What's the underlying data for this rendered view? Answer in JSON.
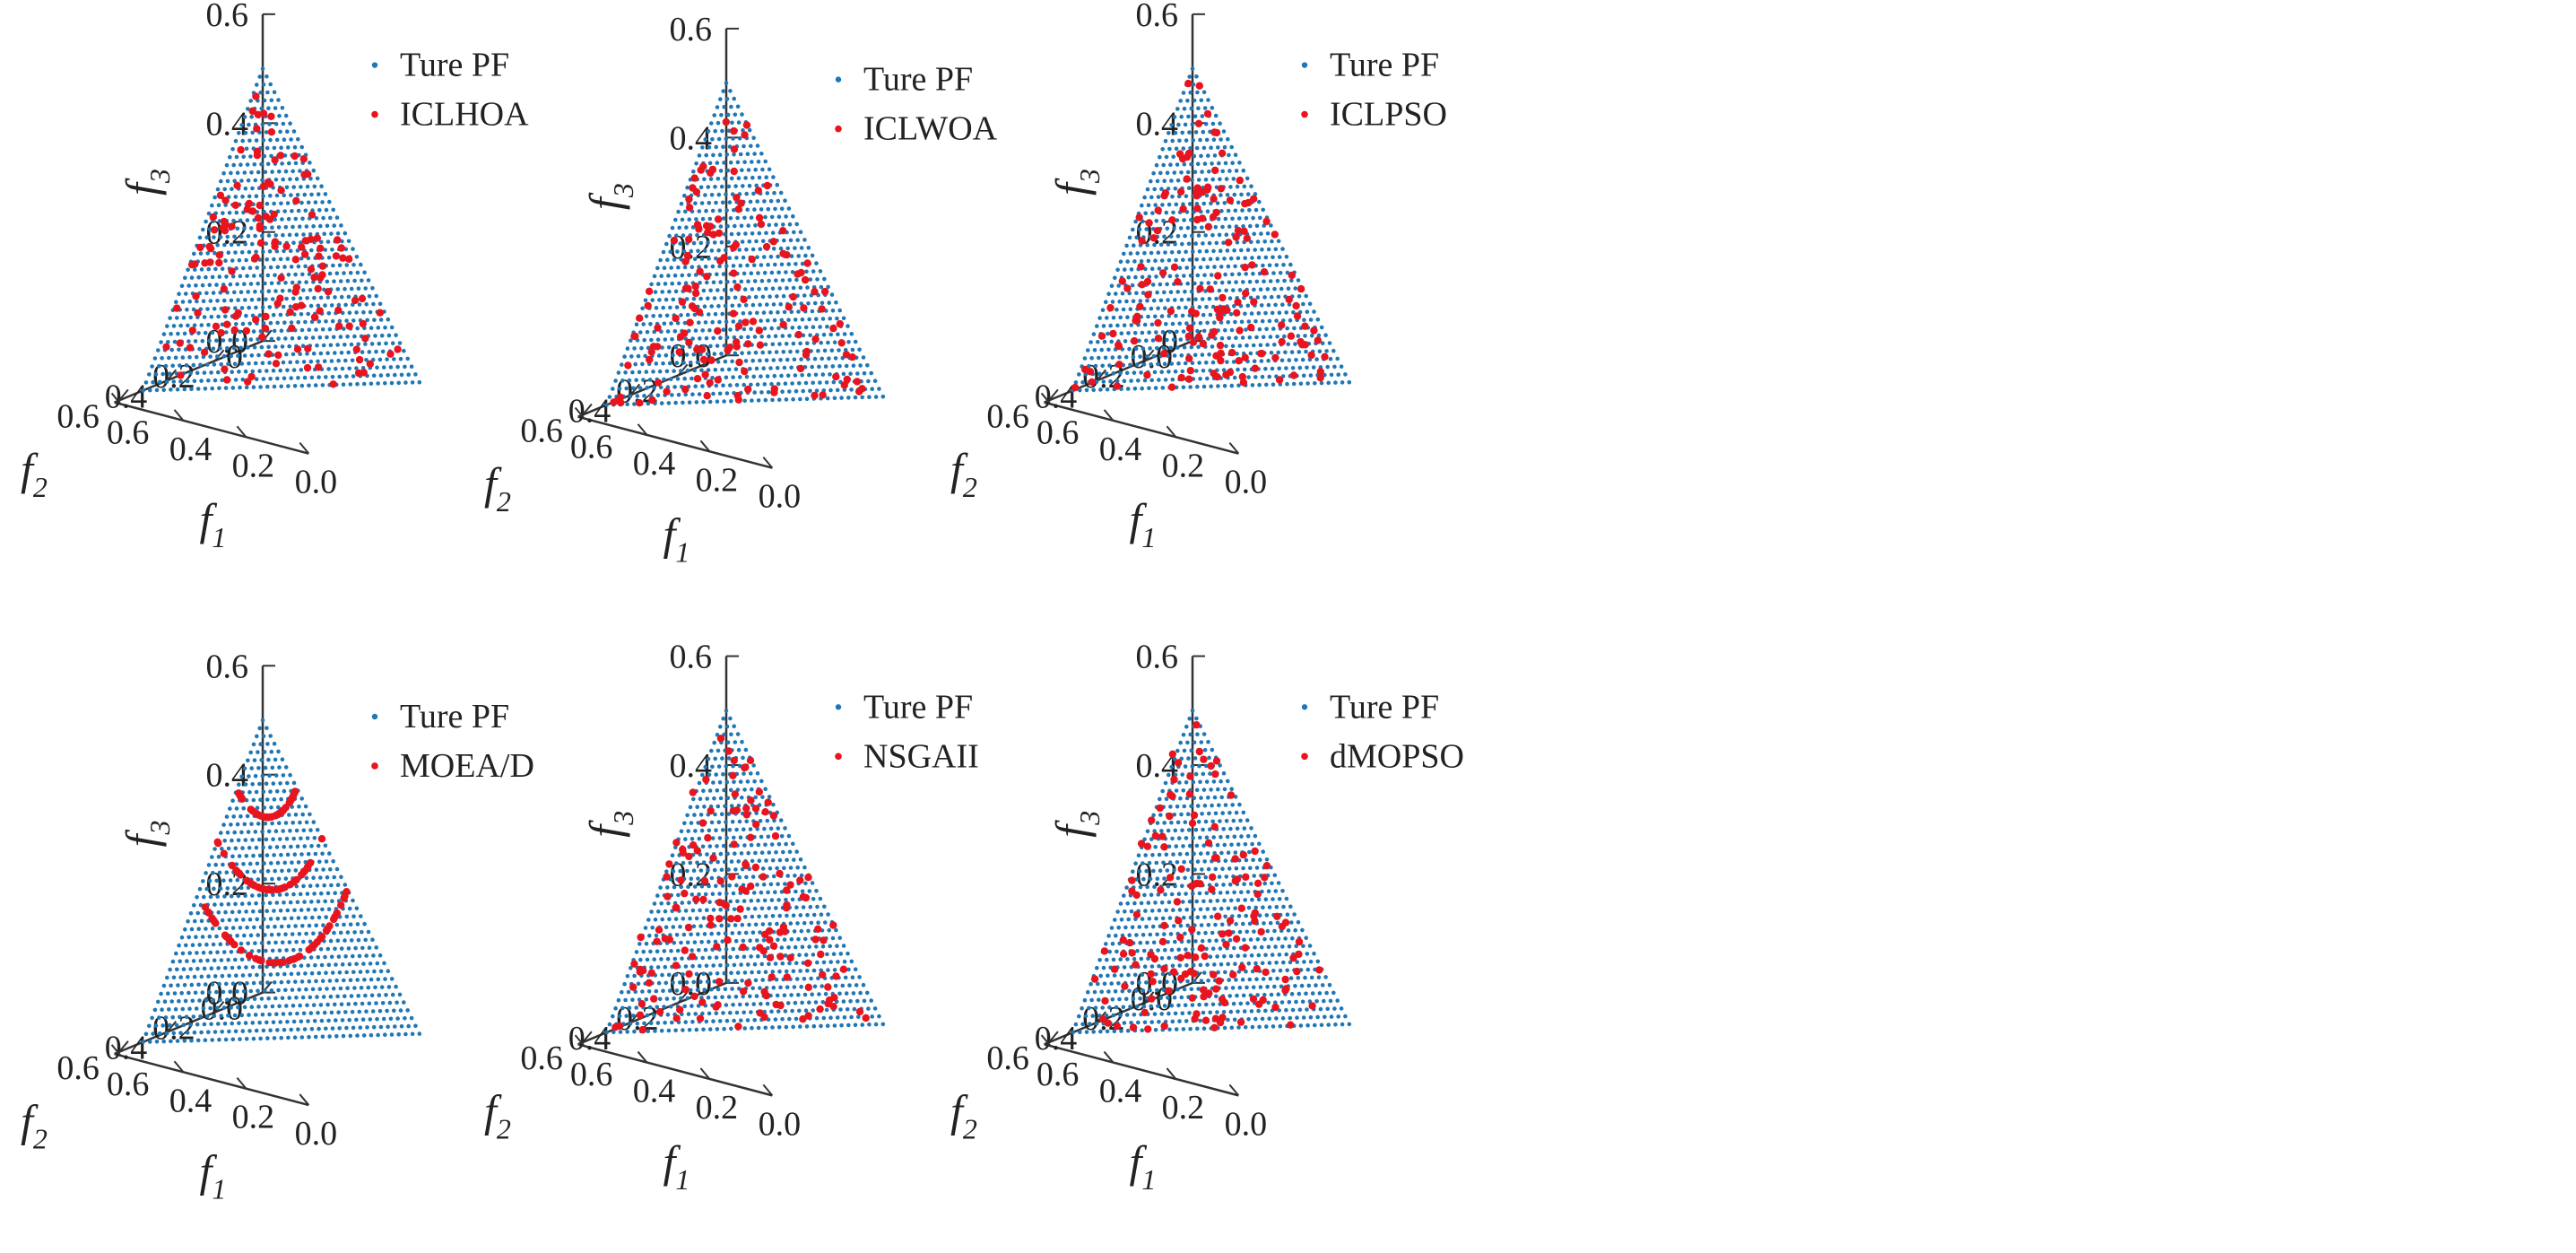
{
  "colors": {
    "true_pf": "#1f77b4",
    "algorithm": "#e8141e",
    "axis": "#333333"
  },
  "legend_true_pf": "Ture PF",
  "chart_data": [
    {
      "type": "scatter",
      "projection": "3d",
      "title": "",
      "legend": [
        "Ture PF",
        "ICLHOA"
      ],
      "legend_placement": "top-right",
      "axes": {
        "x": {
          "label": "f",
          "subscript": "1",
          "ticks": [
            "0.6",
            "0.4",
            "0.2",
            "0.0"
          ]
        },
        "y": {
          "label": "f",
          "subscript": "2",
          "ticks": [
            "0",
            "0.2",
            "0.4",
            "0.6"
          ]
        },
        "z": {
          "label": "f",
          "subscript": "3",
          "ticks": [
            "0.0",
            "0.2",
            "0.4",
            "0.6"
          ]
        }
      },
      "xlim": [
        0,
        0.6
      ],
      "ylim": [
        0,
        0.6
      ],
      "zlim": [
        0,
        0.6
      ],
      "series": [
        {
          "name": "Ture PF",
          "surface": "f1 + f2 + f3 = 0.5",
          "grid_divisions": 40
        },
        {
          "name": "ICLHOA",
          "points": 140,
          "beyond_front": false,
          "clustering": "mostly on the front"
        }
      ]
    },
    {
      "type": "scatter",
      "projection": "3d",
      "title": "",
      "legend": [
        "Ture PF",
        "ICLWOA"
      ],
      "legend_placement": "top-right",
      "axes": {
        "x": {
          "label": "f",
          "subscript": "1",
          "ticks": [
            "0.6",
            "0.4",
            "0.2",
            "0.0"
          ]
        },
        "y": {
          "label": "f",
          "subscript": "2",
          "ticks": [
            "0.2",
            "0.4",
            "0.6"
          ]
        },
        "z": {
          "label": "f",
          "subscript": "3",
          "ticks": [
            "0.0",
            "0.2",
            "0.4",
            "0.6"
          ]
        }
      },
      "xlim": [
        0,
        0.6
      ],
      "ylim": [
        0,
        0.6
      ],
      "zlim": [
        0,
        0.6
      ],
      "series": [
        {
          "name": "Ture PF",
          "surface": "f1 + f2 + f3 = 0.5",
          "grid_divisions": 40
        },
        {
          "name": "ICLWOA",
          "points": 140,
          "beyond_front": false,
          "clustering": "mostly on the front"
        }
      ]
    },
    {
      "type": "scatter",
      "projection": "3d",
      "title": "",
      "legend": [
        "Ture PF",
        "ICLPSO"
      ],
      "legend_placement": "top-right",
      "axes": {
        "x": {
          "label": "f",
          "subscript": "1",
          "ticks": [
            "0.6",
            "0.4",
            "0.2",
            "0.0"
          ]
        },
        "y": {
          "label": "f",
          "subscript": "2",
          "ticks": [
            "0.0",
            "0.2",
            "0.4",
            "0.6"
          ]
        },
        "z": {
          "label": "f",
          "subscript": "3",
          "ticks": [
            "0",
            "0.2",
            "0.4",
            "0.6"
          ]
        }
      },
      "xlim": [
        0,
        0.6
      ],
      "ylim": [
        0,
        0.6
      ],
      "zlim": [
        0,
        0.6
      ],
      "series": [
        {
          "name": "Ture PF",
          "surface": "f1 + f2 + f3 = 0.5",
          "grid_divisions": 40
        },
        {
          "name": "ICLPSO",
          "points": 150,
          "beyond_front": false,
          "clustering": "mostly on the front"
        }
      ]
    },
    {
      "type": "scatter",
      "projection": "3d",
      "title": "",
      "legend": [
        "Ture PF",
        "MOEA/D"
      ],
      "legend_placement": "top-right",
      "axes": {
        "x": {
          "label": "f",
          "subscript": "1",
          "ticks": [
            "0.6",
            "0.4",
            "0.2",
            "0.0"
          ]
        },
        "y": {
          "label": "f",
          "subscript": "2",
          "ticks": [
            "0.0",
            "0.2",
            "0.4",
            "0.6"
          ]
        },
        "z": {
          "label": "f",
          "subscript": "3",
          "ticks": [
            "0.0",
            "0.2",
            "0.4",
            "0.6"
          ]
        }
      },
      "xlim": [
        0,
        0.6
      ],
      "ylim": [
        0,
        0.6
      ],
      "zlim": [
        0,
        0.6
      ],
      "series": [
        {
          "name": "Ture PF",
          "surface": "f1 + f2 + f3 = 0.5",
          "grid_divisions": 40
        },
        {
          "name": "MOEA/D",
          "points": 130,
          "beyond_front": false,
          "clustering": "arc-shaped curves on the front"
        }
      ]
    },
    {
      "type": "scatter",
      "projection": "3d",
      "title": "",
      "legend": [
        "Ture PF",
        "NSGAII"
      ],
      "legend_placement": "top-right",
      "axes": {
        "x": {
          "label": "f",
          "subscript": "1",
          "ticks": [
            "0.6",
            "0.4",
            "0.2",
            "0.0"
          ]
        },
        "y": {
          "label": "f",
          "subscript": "2",
          "ticks": [
            "0.2",
            "0.4",
            "0.6"
          ]
        },
        "z": {
          "label": "f",
          "subscript": "3",
          "ticks": [
            "0.0",
            "0.2",
            "0.4",
            "0.6"
          ]
        }
      },
      "xlim": [
        0,
        0.6
      ],
      "ylim": [
        0,
        0.6
      ],
      "zlim": [
        0,
        0.6
      ],
      "series": [
        {
          "name": "Ture PF",
          "surface": "f1 + f2 + f3 = 0.5",
          "grid_divisions": 40
        },
        {
          "name": "NSGAII",
          "points": 150,
          "beyond_front": true,
          "clustering": "scattered, many points off the front"
        }
      ]
    },
    {
      "type": "scatter",
      "projection": "3d",
      "title": "",
      "legend": [
        "Ture PF",
        "dMOPSO"
      ],
      "legend_placement": "top-right",
      "axes": {
        "x": {
          "label": "f",
          "subscript": "1",
          "ticks": [
            "0.6",
            "0.4",
            "0.2",
            "0.0"
          ]
        },
        "y": {
          "label": "f",
          "subscript": "2",
          "ticks": [
            "0.0",
            "0.2",
            "0.4",
            "0.6"
          ]
        },
        "z": {
          "label": "f",
          "subscript": "3",
          "ticks": [
            "0.0",
            "0.2",
            "0.4",
            "0.6"
          ]
        }
      },
      "xlim": [
        0,
        0.6
      ],
      "ylim": [
        0,
        0.6
      ],
      "zlim": [
        0,
        0.6
      ],
      "series": [
        {
          "name": "Ture PF",
          "surface": "f1 + f2 + f3 = 0.5",
          "grid_divisions": 40
        },
        {
          "name": "dMOPSO",
          "points": 140,
          "beyond_front": true,
          "clustering": "mostly on the front, a few outliers"
        }
      ]
    }
  ]
}
